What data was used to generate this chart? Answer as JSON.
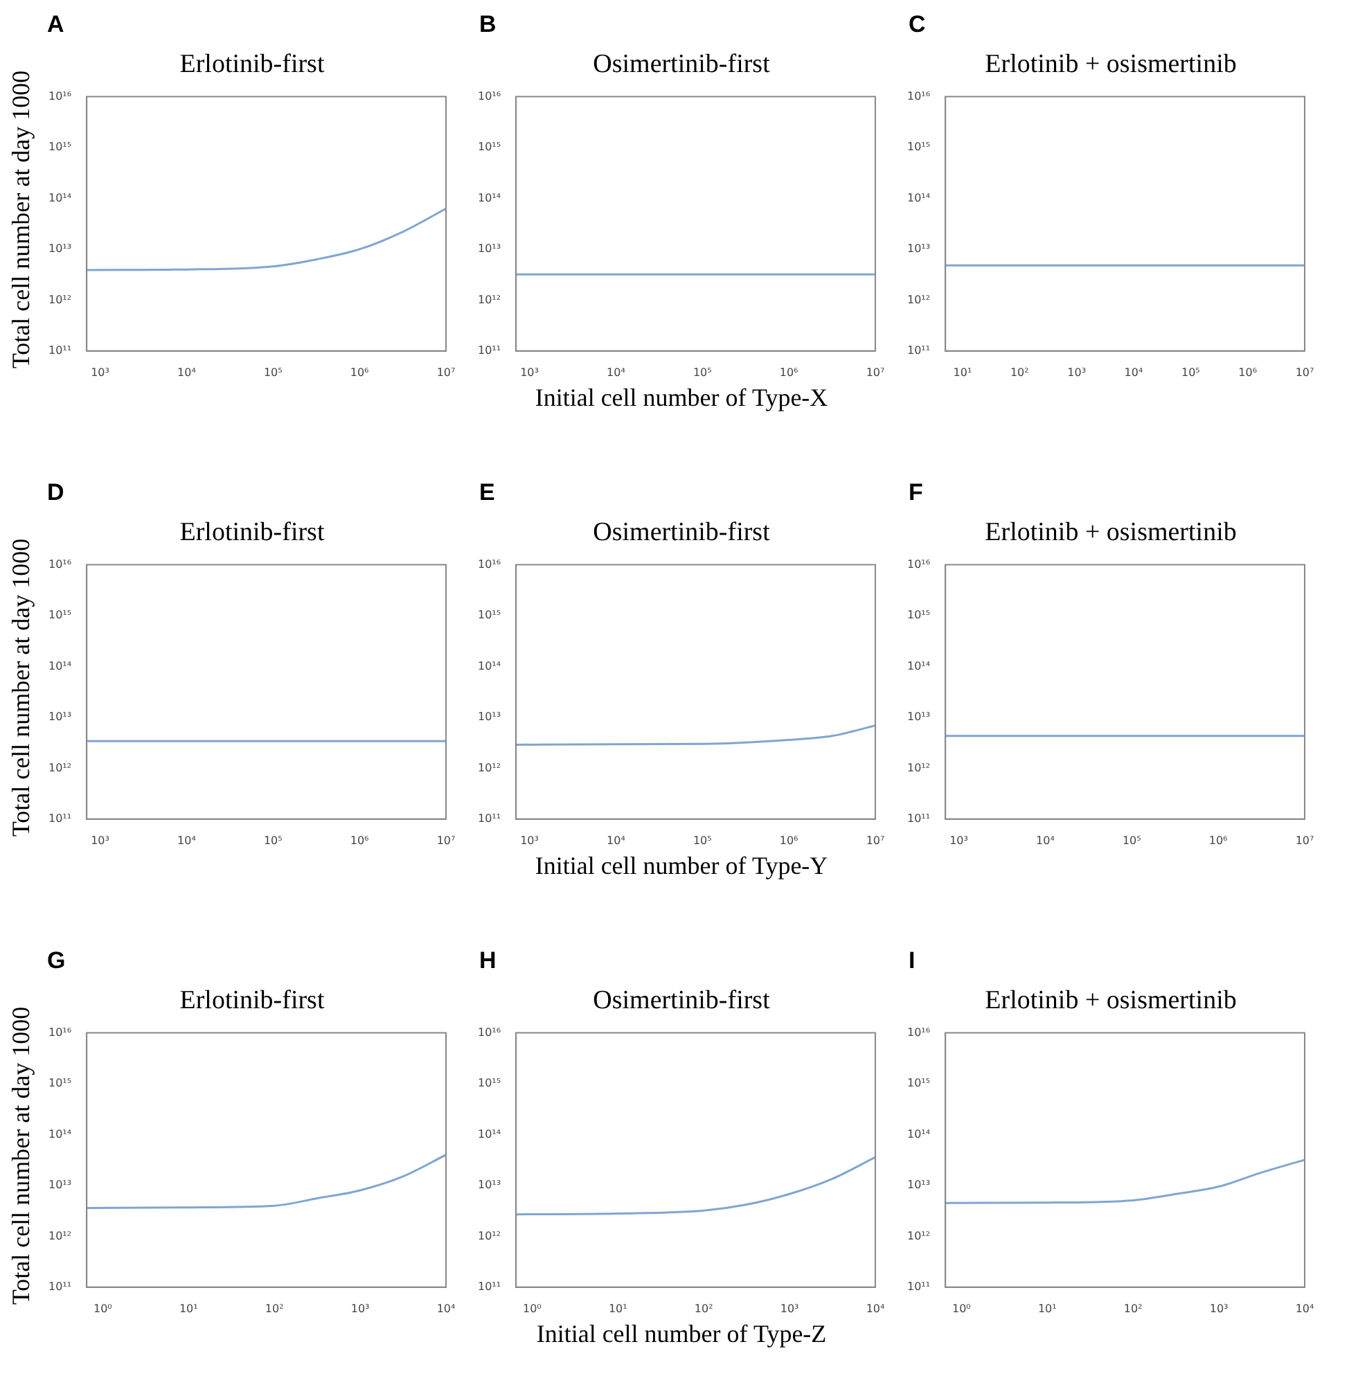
{
  "chart_data": [
    {
      "type": "line",
      "annotations": [
        "A"
      ],
      "title": "Erlotinib-first",
      "ylabel": "Total cell number at day 1000",
      "log": "xy",
      "grid": false,
      "marker": "none",
      "xlim": [
        700,
        10000000
      ],
      "ylim": [
        100000000000,
        10000000000000000
      ],
      "xticks": [
        {
          "value": 1000,
          "label": "10³"
        },
        {
          "value": 10000,
          "label": "10⁴"
        },
        {
          "value": 100000,
          "label": "10⁵"
        },
        {
          "value": 1000000,
          "label": "10⁶"
        },
        {
          "value": 10000000,
          "label": "10⁷"
        }
      ],
      "yticks": [
        {
          "value": 100000000000,
          "label": "10¹¹"
        },
        {
          "value": 1000000000000,
          "label": "10¹²"
        },
        {
          "value": 10000000000000,
          "label": "10¹³"
        },
        {
          "value": 100000000000000,
          "label": "10¹⁴"
        },
        {
          "value": 1000000000000000,
          "label": "10¹⁵"
        },
        {
          "value": 10000000000000000,
          "label": "10¹⁶"
        }
      ],
      "x": [
        700,
        10000,
        100000,
        316000,
        1000000,
        3160000,
        10000000
      ],
      "series": [
        {
          "color": "#7fa6d1",
          "values": [
            3900000000000,
            4000000000000,
            4600000000000,
            6300000000000,
            10000000000000,
            22000000000000,
            63000000000000
          ]
        }
      ]
    },
    {
      "type": "line",
      "annotations": [
        "B"
      ],
      "title": "Osimertinib-first",
      "xlabel": "Initial cell number of Type-X",
      "log": "xy",
      "grid": false,
      "marker": "none",
      "xlim": [
        700,
        10000000
      ],
      "ylim": [
        100000000000,
        10000000000000000
      ],
      "xticks": [
        {
          "value": 1000,
          "label": "10³"
        },
        {
          "value": 10000,
          "label": "10⁴"
        },
        {
          "value": 100000,
          "label": "10⁵"
        },
        {
          "value": 1000000,
          "label": "10⁶"
        },
        {
          "value": 10000000,
          "label": "10⁷"
        }
      ],
      "yticks": [
        {
          "value": 100000000000,
          "label": "10¹¹"
        },
        {
          "value": 1000000000000,
          "label": "10¹²"
        },
        {
          "value": 10000000000000,
          "label": "10¹³"
        },
        {
          "value": 100000000000000,
          "label": "10¹⁴"
        },
        {
          "value": 1000000000000000,
          "label": "10¹⁵"
        },
        {
          "value": 10000000000000000,
          "label": "10¹⁶"
        }
      ],
      "x": [
        700,
        100000,
        10000000
      ],
      "series": [
        {
          "color": "#7fa6d1",
          "values": [
            3200000000000,
            3200000000000,
            3200000000000
          ]
        }
      ]
    },
    {
      "type": "line",
      "annotations": [
        "C"
      ],
      "title": "Erlotinib + osismertinib",
      "log": "xy",
      "grid": false,
      "marker": "none",
      "xlim": [
        5,
        10000000
      ],
      "ylim": [
        100000000000,
        10000000000000000
      ],
      "xticks": [
        {
          "value": 10,
          "label": "10¹"
        },
        {
          "value": 100,
          "label": "10²"
        },
        {
          "value": 1000,
          "label": "10³"
        },
        {
          "value": 10000,
          "label": "10⁴"
        },
        {
          "value": 100000,
          "label": "10⁵"
        },
        {
          "value": 1000000,
          "label": "10⁶"
        },
        {
          "value": 10000000,
          "label": "10⁷"
        }
      ],
      "yticks": [
        {
          "value": 100000000000,
          "label": "10¹¹"
        },
        {
          "value": 1000000000000,
          "label": "10¹²"
        },
        {
          "value": 10000000000000,
          "label": "10¹³"
        },
        {
          "value": 100000000000000,
          "label": "10¹⁴"
        },
        {
          "value": 1000000000000000,
          "label": "10¹⁵"
        },
        {
          "value": 10000000000000000,
          "label": "10¹⁶"
        }
      ],
      "x": [
        5,
        10000,
        10000000
      ],
      "series": [
        {
          "color": "#7fa6d1",
          "values": [
            4800000000000,
            4800000000000,
            4800000000000
          ]
        }
      ]
    },
    {
      "type": "line",
      "annotations": [
        "D"
      ],
      "title": "Erlotinib-first",
      "ylabel": "Total cell number at day 1000",
      "log": "xy",
      "grid": false,
      "marker": "none",
      "xlim": [
        700,
        10000000
      ],
      "ylim": [
        100000000000,
        10000000000000000
      ],
      "xticks": [
        {
          "value": 1000,
          "label": "10³"
        },
        {
          "value": 10000,
          "label": "10⁴"
        },
        {
          "value": 100000,
          "label": "10⁵"
        },
        {
          "value": 1000000,
          "label": "10⁶"
        },
        {
          "value": 10000000,
          "label": "10⁷"
        }
      ],
      "yticks": [
        {
          "value": 100000000000,
          "label": "10¹¹"
        },
        {
          "value": 1000000000000,
          "label": "10¹²"
        },
        {
          "value": 10000000000000,
          "label": "10¹³"
        },
        {
          "value": 100000000000000,
          "label": "10¹⁴"
        },
        {
          "value": 1000000000000000,
          "label": "10¹⁵"
        },
        {
          "value": 10000000000000000,
          "label": "10¹⁶"
        }
      ],
      "x": [
        700,
        100000,
        10000000
      ],
      "series": [
        {
          "color": "#7fa6d1",
          "values": [
            3400000000000,
            3400000000000,
            3400000000000
          ]
        }
      ]
    },
    {
      "type": "line",
      "annotations": [
        "E"
      ],
      "title": "Osimertinib-first",
      "xlabel": "Initial cell number of Type-Y",
      "log": "xy",
      "grid": false,
      "marker": "none",
      "xlim": [
        700,
        10000000
      ],
      "ylim": [
        100000000000,
        10000000000000000
      ],
      "xticks": [
        {
          "value": 1000,
          "label": "10³"
        },
        {
          "value": 10000,
          "label": "10⁴"
        },
        {
          "value": 100000,
          "label": "10⁵"
        },
        {
          "value": 1000000,
          "label": "10⁶"
        },
        {
          "value": 10000000,
          "label": "10⁷"
        }
      ],
      "yticks": [
        {
          "value": 100000000000,
          "label": "10¹¹"
        },
        {
          "value": 1000000000000,
          "label": "10¹²"
        },
        {
          "value": 10000000000000,
          "label": "10¹³"
        },
        {
          "value": 100000000000000,
          "label": "10¹⁴"
        },
        {
          "value": 1000000000000000,
          "label": "10¹⁵"
        },
        {
          "value": 10000000000000000,
          "label": "10¹⁶"
        }
      ],
      "x": [
        700,
        100000,
        1000000,
        3160000,
        10000000
      ],
      "series": [
        {
          "color": "#7fa6d1",
          "values": [
            2900000000000,
            3000000000000,
            3600000000000,
            4300000000000,
            6900000000000
          ]
        }
      ]
    },
    {
      "type": "line",
      "annotations": [
        "F"
      ],
      "title": "Erlotinib + osismertinib",
      "log": "xy",
      "grid": false,
      "marker": "none",
      "xlim": [
        700,
        10000000
      ],
      "ylim": [
        100000000000,
        10000000000000000
      ],
      "xticks": [
        {
          "value": 1000,
          "label": "10³"
        },
        {
          "value": 10000,
          "label": "10⁴"
        },
        {
          "value": 100000,
          "label": "10⁵"
        },
        {
          "value": 1000000,
          "label": "10⁶"
        },
        {
          "value": 10000000,
          "label": "10⁷"
        }
      ],
      "yticks": [
        {
          "value": 100000000000,
          "label": "10¹¹"
        },
        {
          "value": 1000000000000,
          "label": "10¹²"
        },
        {
          "value": 10000000000000,
          "label": "10¹³"
        },
        {
          "value": 100000000000000,
          "label": "10¹⁴"
        },
        {
          "value": 1000000000000000,
          "label": "10¹⁵"
        },
        {
          "value": 10000000000000000,
          "label": "10¹⁶"
        }
      ],
      "x": [
        700,
        100000,
        10000000
      ],
      "series": [
        {
          "color": "#7fa6d1",
          "values": [
            4300000000000,
            4300000000000,
            4300000000000
          ]
        }
      ]
    },
    {
      "type": "line",
      "annotations": [
        "G"
      ],
      "title": "Erlotinib-first",
      "ylabel": "Total cell number at day 1000",
      "log": "xy",
      "grid": false,
      "marker": "none",
      "xlim": [
        0.65,
        10000
      ],
      "ylim": [
        100000000000,
        10000000000000000
      ],
      "xticks": [
        {
          "value": 1,
          "label": "10⁰"
        },
        {
          "value": 10,
          "label": "10¹"
        },
        {
          "value": 100,
          "label": "10²"
        },
        {
          "value": 1000,
          "label": "10³"
        },
        {
          "value": 10000,
          "label": "10⁴"
        }
      ],
      "yticks": [
        {
          "value": 100000000000,
          "label": "10¹¹"
        },
        {
          "value": 1000000000000,
          "label": "10¹²"
        },
        {
          "value": 10000000000000,
          "label": "10¹³"
        },
        {
          "value": 100000000000000,
          "label": "10¹⁴"
        },
        {
          "value": 1000000000000000,
          "label": "10¹⁵"
        },
        {
          "value": 10000000000000000,
          "label": "10¹⁶"
        }
      ],
      "x": [
        0.65,
        10,
        100,
        316,
        1000,
        3160,
        10000
      ],
      "series": [
        {
          "color": "#7fa6d1",
          "values": [
            3600000000000,
            3700000000000,
            4000000000000,
            5600000000000,
            8000000000000,
            15000000000000,
            40000000000000
          ]
        }
      ]
    },
    {
      "type": "line",
      "annotations": [
        "H"
      ],
      "title": "Osimertinib-first",
      "xlabel": "Initial cell number of Type-Z",
      "log": "xy",
      "grid": false,
      "marker": "none",
      "xlim": [
        0.65,
        10000
      ],
      "ylim": [
        100000000000,
        10000000000000000
      ],
      "xticks": [
        {
          "value": 1,
          "label": "10⁰"
        },
        {
          "value": 10,
          "label": "10¹"
        },
        {
          "value": 100,
          "label": "10²"
        },
        {
          "value": 1000,
          "label": "10³"
        },
        {
          "value": 10000,
          "label": "10⁴"
        }
      ],
      "yticks": [
        {
          "value": 100000000000,
          "label": "10¹¹"
        },
        {
          "value": 1000000000000,
          "label": "10¹²"
        },
        {
          "value": 10000000000000,
          "label": "10¹³"
        },
        {
          "value": 100000000000000,
          "label": "10¹⁴"
        },
        {
          "value": 1000000000000000,
          "label": "10¹⁵"
        },
        {
          "value": 10000000000000000,
          "label": "10¹⁶"
        }
      ],
      "x": [
        0.65,
        10,
        100,
        316,
        1000,
        3160,
        10000
      ],
      "series": [
        {
          "color": "#7fa6d1",
          "values": [
            2700000000000,
            2800000000000,
            3200000000000,
            4200000000000,
            6800000000000,
            13500000000000,
            36000000000000
          ]
        }
      ]
    },
    {
      "type": "line",
      "annotations": [
        "I"
      ],
      "title": "Erlotinib + osismertinib",
      "log": "xy",
      "grid": false,
      "marker": "none",
      "xlim": [
        0.65,
        10000
      ],
      "ylim": [
        100000000000,
        10000000000000000
      ],
      "xticks": [
        {
          "value": 1,
          "label": "10⁰"
        },
        {
          "value": 10,
          "label": "10¹"
        },
        {
          "value": 100,
          "label": "10²"
        },
        {
          "value": 1000,
          "label": "10³"
        },
        {
          "value": 10000,
          "label": "10⁴"
        }
      ],
      "yticks": [
        {
          "value": 100000000000,
          "label": "10¹¹"
        },
        {
          "value": 1000000000000,
          "label": "10¹²"
        },
        {
          "value": 10000000000000,
          "label": "10¹³"
        },
        {
          "value": 100000000000000,
          "label": "10¹⁴"
        },
        {
          "value": 1000000000000000,
          "label": "10¹⁵"
        },
        {
          "value": 10000000000000000,
          "label": "10¹⁶"
        }
      ],
      "x": [
        0.65,
        10,
        100,
        316,
        1000,
        3160,
        10000
      ],
      "series": [
        {
          "color": "#7fa6d1",
          "values": [
            4500000000000,
            4600000000000,
            5100000000000,
            6800000000000,
            9500000000000,
            18000000000000,
            32000000000000
          ]
        }
      ]
    }
  ]
}
